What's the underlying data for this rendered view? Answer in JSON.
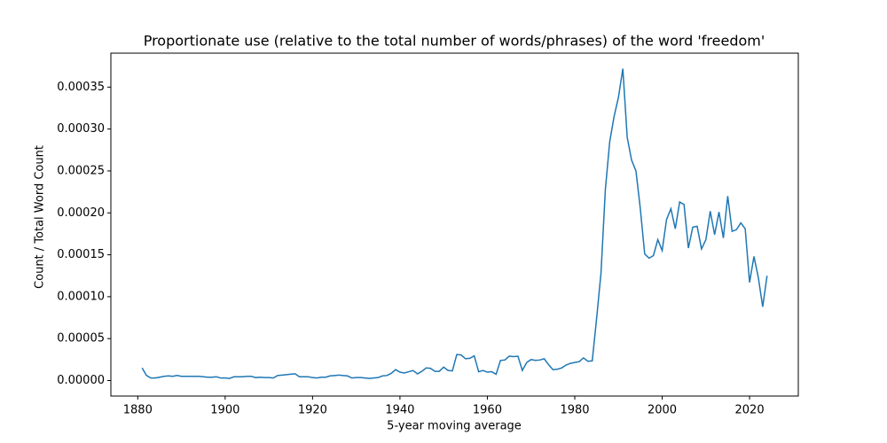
{
  "chart_data": {
    "type": "line",
    "title": "Proportionate use (relative to the total number of words/phrases) of the word 'freedom'",
    "x_label": "5-year moving average",
    "y_label": "Count / Total Word Count",
    "x": [
      1881,
      1882,
      1883,
      1884,
      1885,
      1886,
      1887,
      1888,
      1889,
      1890,
      1891,
      1892,
      1893,
      1894,
      1895,
      1896,
      1897,
      1898,
      1899,
      1900,
      1901,
      1902,
      1903,
      1904,
      1905,
      1906,
      1907,
      1908,
      1909,
      1910,
      1911,
      1912,
      1913,
      1914,
      1915,
      1916,
      1917,
      1918,
      1919,
      1920,
      1921,
      1922,
      1923,
      1924,
      1925,
      1926,
      1927,
      1928,
      1929,
      1930,
      1931,
      1932,
      1933,
      1934,
      1935,
      1936,
      1937,
      1938,
      1939,
      1940,
      1941,
      1942,
      1943,
      1944,
      1945,
      1946,
      1947,
      1948,
      1949,
      1950,
      1951,
      1952,
      1953,
      1954,
      1955,
      1956,
      1957,
      1958,
      1959,
      1960,
      1961,
      1962,
      1963,
      1964,
      1965,
      1966,
      1967,
      1968,
      1969,
      1970,
      1971,
      1972,
      1973,
      1974,
      1975,
      1976,
      1977,
      1978,
      1979,
      1980,
      1981,
      1982,
      1983,
      1984,
      1985,
      1986,
      1987,
      1988,
      1989,
      1990,
      1991,
      1992,
      1993,
      1994,
      1995,
      1996,
      1997,
      1998,
      1999,
      2000,
      2001,
      2002,
      2003,
      2004,
      2005,
      2006,
      2007,
      2008,
      2009,
      2010,
      2011,
      2012,
      2013,
      2014,
      2015,
      2016,
      2017,
      2018,
      2019,
      2020,
      2021,
      2022,
      2023,
      2024
    ],
    "series": [
      {
        "name": "freedom",
        "color": "#1f77b4",
        "values": [
          1.5e-05,
          6e-06,
          3e-06,
          3e-06,
          4e-06,
          5e-06,
          5.5e-06,
          5e-06,
          6e-06,
          5e-06,
          5e-06,
          5e-06,
          5e-06,
          5e-06,
          4.5e-06,
          4e-06,
          4e-06,
          4.5e-06,
          3e-06,
          3e-06,
          2.5e-06,
          4.5e-06,
          4.5e-06,
          4.5e-06,
          5e-06,
          5e-06,
          3.5e-06,
          4e-06,
          3.5e-06,
          3.5e-06,
          3e-06,
          6e-06,
          6.5e-06,
          7e-06,
          7.5e-06,
          8e-06,
          4.5e-06,
          4.5e-06,
          4.5e-06,
          3.5e-06,
          3e-06,
          4e-06,
          4e-06,
          5.5e-06,
          6e-06,
          6.5e-06,
          6e-06,
          5.5e-06,
          3e-06,
          3.5e-06,
          3.5e-06,
          3e-06,
          2.5e-06,
          3e-06,
          3.5e-06,
          5.5e-06,
          6e-06,
          8.5e-06,
          1.3e-05,
          1e-05,
          9e-06,
          1.05e-05,
          1.2e-05,
          8e-06,
          1.1e-05,
          1.5e-05,
          1.45e-05,
          1.1e-05,
          1.1e-05,
          1.6e-05,
          1.2e-05,
          1.15e-05,
          3.1e-05,
          3.05e-05,
          2.6e-05,
          2.65e-05,
          2.95e-05,
          1.05e-05,
          1.2e-05,
          1e-05,
          1.05e-05,
          7.5e-06,
          2.4e-05,
          2.45e-05,
          2.9e-05,
          2.85e-05,
          2.9e-05,
          1.2e-05,
          2.15e-05,
          2.5e-05,
          2.4e-05,
          2.45e-05,
          2.6e-05,
          1.9e-05,
          1.3e-05,
          1.35e-05,
          1.5e-05,
          1.85e-05,
          2.05e-05,
          2.15e-05,
          2.25e-05,
          2.7e-05,
          2.3e-05,
          2.35e-05,
          7.4e-05,
          0.000128,
          0.000228,
          0.000285,
          0.000315,
          0.000338,
          0.000372,
          0.00029,
          0.000263,
          0.00025,
          0.000205,
          0.000151,
          0.000146,
          0.000149,
          0.000168,
          0.000155,
          0.000192,
          0.000205,
          0.000181,
          0.000213,
          0.00021,
          0.000158,
          0.000183,
          0.000184,
          0.000157,
          0.000168,
          0.000202,
          0.000174,
          0.000201,
          0.00017,
          0.00022,
          0.000178,
          0.00018,
          0.000188,
          0.000181,
          0.000117,
          0.000148,
          0.000123,
          8.8e-05,
          0.000125
        ]
      }
    ],
    "xlim": [
      1873.85,
      2031.15
    ],
    "ylim": [
      -1.85e-05,
      0.0003905
    ],
    "xticks": [
      1880,
      1900,
      1920,
      1940,
      1960,
      1980,
      2000,
      2020
    ],
    "yticks": [
      {
        "value": 0,
        "label": "0.00000"
      },
      {
        "value": 5e-05,
        "label": "0.00005"
      },
      {
        "value": 0.0001,
        "label": "0.00010"
      },
      {
        "value": 0.00015,
        "label": "0.00015"
      },
      {
        "value": 0.0002,
        "label": "0.00020"
      },
      {
        "value": 0.00025,
        "label": "0.00025"
      },
      {
        "value": 0.0003,
        "label": "0.00030"
      },
      {
        "value": 0.00035,
        "label": "0.00035"
      }
    ],
    "grid": false
  }
}
